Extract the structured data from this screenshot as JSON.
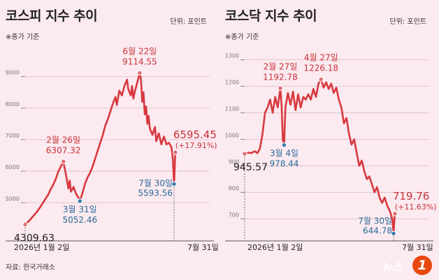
{
  "source": "자료: 한국거래소",
  "logo": {
    "text": "뉴스",
    "badge": "1"
  },
  "chart_data": [
    {
      "type": "line",
      "title": "코스피 지수 추이",
      "unit": "단위: 포인트",
      "note": "※종가 기준",
      "ylim": [
        3900,
        9700
      ],
      "yticks": [
        5000,
        6000,
        7000,
        8000,
        9000
      ],
      "xlim": [
        0,
        145
      ],
      "x_start_label": "2026년 1월 2일",
      "x_end_label": "7월 31일",
      "grid": true,
      "color": "#d8383f",
      "series": [
        {
          "points": [
            [
              0,
              4309.63
            ],
            [
              3,
              4420
            ],
            [
              6,
              4560
            ],
            [
              9,
              4700
            ],
            [
              12,
              4870
            ],
            [
              15,
              5060
            ],
            [
              18,
              5250
            ],
            [
              20,
              5420
            ],
            [
              22,
              5570
            ],
            [
              24,
              5750
            ],
            [
              26,
              5980
            ],
            [
              28,
              6150
            ],
            [
              30,
              6307.32
            ],
            [
              32,
              5900
            ],
            [
              34,
              5450
            ],
            [
              35,
              5700
            ],
            [
              36,
              5350
            ],
            [
              38,
              5500
            ],
            [
              40,
              5280
            ],
            [
              42,
              5150
            ],
            [
              43,
              5052.46
            ],
            [
              45,
              5300
            ],
            [
              47,
              5600
            ],
            [
              49,
              5800
            ],
            [
              51,
              5950
            ],
            [
              53,
              6150
            ],
            [
              55,
              6400
            ],
            [
              57,
              6650
            ],
            [
              59,
              6900
            ],
            [
              61,
              7150
            ],
            [
              63,
              7450
            ],
            [
              65,
              7650
            ],
            [
              67,
              7900
            ],
            [
              69,
              8150
            ],
            [
              71,
              8350
            ],
            [
              72,
              8100
            ],
            [
              74,
              8550
            ],
            [
              76,
              8400
            ],
            [
              78,
              8700
            ],
            [
              80,
              8900
            ],
            [
              81,
              8600
            ],
            [
              83,
              8400
            ],
            [
              84,
              8700
            ],
            [
              85,
              8300
            ],
            [
              86,
              8500
            ],
            [
              88,
              8800
            ],
            [
              90,
              9114.55
            ],
            [
              91,
              8900
            ],
            [
              92,
              8200
            ],
            [
              93,
              8500
            ],
            [
              94,
              7800
            ],
            [
              95,
              8050
            ],
            [
              96,
              7500
            ],
            [
              97,
              7750
            ],
            [
              98,
              7350
            ],
            [
              100,
              7150
            ],
            [
              102,
              7400
            ],
            [
              103,
              6950
            ],
            [
              105,
              7200
            ],
            [
              107,
              6850
            ],
            [
              109,
              7100
            ],
            [
              111,
              6850
            ],
            [
              113,
              6900
            ],
            [
              115,
              6750
            ],
            [
              116,
              6400
            ],
            [
              117,
              5593.56
            ],
            [
              118,
              6595.45
            ]
          ]
        }
      ],
      "annotations": [
        {
          "label": "4309.63",
          "x": 0,
          "y": 4309.63,
          "color": "dark",
          "pos": "below"
        },
        {
          "date": "2월 26일",
          "label": "6307.32",
          "x": 30,
          "y": 6307.32,
          "color": "red",
          "pos": "above"
        },
        {
          "date": "3월 31일",
          "label": "5052.46",
          "x": 43,
          "y": 5052.46,
          "color": "blue",
          "pos": "below"
        },
        {
          "date": "6월 22일",
          "label": "9114.55",
          "x": 90,
          "y": 9114.55,
          "color": "red",
          "pos": "above"
        },
        {
          "date": "7월 30일",
          "label": "5593.56",
          "x": 117,
          "y": 5593.56,
          "color": "blue",
          "pos": "left"
        },
        {
          "label": "6595.45",
          "sub": "(+17.91%)",
          "x": 118,
          "y": 6595.45,
          "color": "red",
          "pos": "right"
        }
      ]
    },
    {
      "type": "line",
      "title": "코스닥 지수 추이",
      "unit": "단위: 포인트",
      "note": "※종가 기준",
      "ylim": [
        630,
        1320
      ],
      "yticks": [
        700,
        800,
        900,
        1000,
        1100,
        1200,
        1300
      ],
      "xlim": [
        0,
        145
      ],
      "x_start_label": "2026년 1월 2일",
      "x_end_label": "7월 31일",
      "grid": true,
      "color": "#d8383f",
      "series": [
        {
          "points": [
            [
              0,
              945.57
            ],
            [
              3,
              950
            ],
            [
              5,
              948
            ],
            [
              8,
              955
            ],
            [
              10,
              948
            ],
            [
              12,
              965
            ],
            [
              14,
              1020
            ],
            [
              16,
              1100
            ],
            [
              18,
              1120
            ],
            [
              20,
              1150
            ],
            [
              22,
              1100
            ],
            [
              24,
              1160
            ],
            [
              26,
              1120
            ],
            [
              28,
              1192.78
            ],
            [
              29,
              1130
            ],
            [
              30,
              1000
            ],
            [
              31,
              978.44
            ],
            [
              32,
              1120
            ],
            [
              34,
              1175
            ],
            [
              36,
              1130
            ],
            [
              38,
              1180
            ],
            [
              40,
              1110
            ],
            [
              42,
              1170
            ],
            [
              44,
              1120
            ],
            [
              46,
              1160
            ],
            [
              48,
              1150
            ],
            [
              50,
              1170
            ],
            [
              52,
              1150
            ],
            [
              54,
              1190
            ],
            [
              56,
              1160
            ],
            [
              58,
              1210
            ],
            [
              60,
              1226.18
            ],
            [
              62,
              1195
            ],
            [
              64,
              1215
            ],
            [
              66,
              1190
            ],
            [
              68,
              1210
            ],
            [
              70,
              1175
            ],
            [
              72,
              1195
            ],
            [
              74,
              1150
            ],
            [
              76,
              1120
            ],
            [
              78,
              1060
            ],
            [
              80,
              1080
            ],
            [
              82,
              1020
            ],
            [
              84,
              980
            ],
            [
              86,
              1000
            ],
            [
              88,
              950
            ],
            [
              90,
              900
            ],
            [
              92,
              920
            ],
            [
              94,
              880
            ],
            [
              96,
              850
            ],
            [
              98,
              860
            ],
            [
              100,
              830
            ],
            [
              102,
              800
            ],
            [
              104,
              820
            ],
            [
              106,
              780
            ],
            [
              108,
              760
            ],
            [
              110,
              780
            ],
            [
              112,
              750
            ],
            [
              114,
              730
            ],
            [
              116,
              700
            ],
            [
              117,
              644.78
            ],
            [
              118,
              719.76
            ]
          ]
        }
      ],
      "annotations": [
        {
          "label": "945.57",
          "x": 0,
          "y": 945.57,
          "color": "dark",
          "pos": "below"
        },
        {
          "date": "2월 27일",
          "label": "1192.78",
          "x": 28,
          "y": 1192.78,
          "color": "red",
          "pos": "above"
        },
        {
          "date": "3월 4일",
          "label": "978.44",
          "x": 31,
          "y": 978.44,
          "color": "blue",
          "pos": "below"
        },
        {
          "date": "4월 27일",
          "label": "1226.18",
          "x": 60,
          "y": 1226.18,
          "color": "red",
          "pos": "above"
        },
        {
          "date": "7월 30일",
          "label": "644.78",
          "x": 117,
          "y": 644.78,
          "color": "blue",
          "pos": "left"
        },
        {
          "label": "719.76",
          "sub": "(+11.63%)",
          "x": 118,
          "y": 719.76,
          "color": "red",
          "pos": "right"
        }
      ]
    }
  ]
}
